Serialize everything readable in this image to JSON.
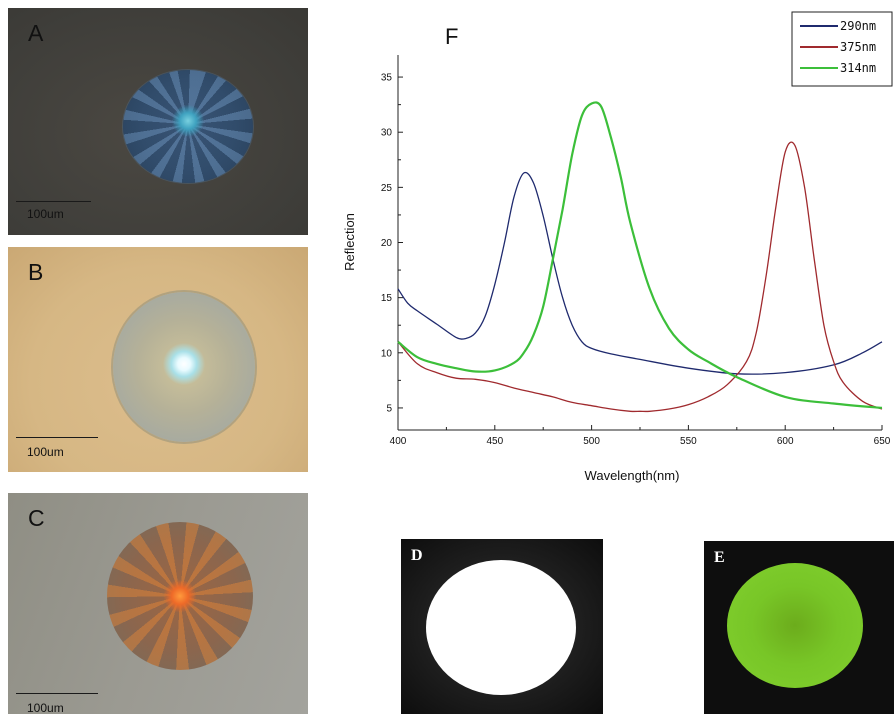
{
  "panels": {
    "a": {
      "letter": "A",
      "scale_label": "100um"
    },
    "b": {
      "letter": "B",
      "scale_label": "100um"
    },
    "c": {
      "letter": "C",
      "scale_label": "100um"
    },
    "d": {
      "letter": "D"
    },
    "e": {
      "letter": "E"
    }
  },
  "chart_data": {
    "type": "line",
    "panel_letter": "F",
    "xlabel": "Wavelength(nm)",
    "ylabel": "Reflection",
    "xlim": [
      400,
      650
    ],
    "ylim": [
      3,
      37
    ],
    "xticks": [
      400,
      450,
      500,
      550,
      600,
      650
    ],
    "yticks": [
      5,
      10,
      15,
      20,
      25,
      30,
      35
    ],
    "legend_position": "top-right",
    "series": [
      {
        "name": "290nm",
        "color": "#1f2a6e",
        "x": [
          400,
          405,
          410,
          420,
          430,
          435,
          440,
          445,
          450,
          455,
          460,
          465,
          470,
          475,
          480,
          485,
          490,
          495,
          500,
          510,
          525,
          550,
          575,
          600,
          625,
          640,
          650
        ],
        "y": [
          15.8,
          14.5,
          13.8,
          12.6,
          11.4,
          11.3,
          11.8,
          13.3,
          16.2,
          20.0,
          24.2,
          26.3,
          25.4,
          22.4,
          18.5,
          15.0,
          12.5,
          11.0,
          10.4,
          9.9,
          9.4,
          8.6,
          8.1,
          8.2,
          8.9,
          10.0,
          11.0
        ]
      },
      {
        "name": "375nm",
        "color": "#a02a2e",
        "x": [
          400,
          410,
          420,
          430,
          440,
          450,
          460,
          470,
          480,
          490,
          500,
          510,
          520,
          525,
          530,
          540,
          550,
          560,
          570,
          580,
          585,
          590,
          595,
          600,
          605,
          610,
          615,
          620,
          625,
          630,
          640,
          650
        ],
        "y": [
          11.0,
          9.0,
          8.2,
          7.7,
          7.6,
          7.3,
          6.8,
          6.4,
          6.0,
          5.5,
          5.2,
          4.9,
          4.7,
          4.7,
          4.7,
          4.9,
          5.3,
          6.0,
          7.1,
          9.2,
          11.8,
          16.8,
          23.0,
          28.2,
          28.8,
          25.0,
          18.5,
          12.5,
          9.2,
          7.3,
          5.6,
          4.9
        ]
      },
      {
        "name": "314nm",
        "color": "#3cbf3a",
        "x": [
          400,
          410,
          420,
          430,
          440,
          450,
          460,
          465,
          470,
          475,
          480,
          485,
          490,
          495,
          500,
          505,
          510,
          515,
          520,
          530,
          540,
          550,
          560,
          575,
          600,
          625,
          650
        ],
        "y": [
          11.0,
          9.6,
          9.0,
          8.6,
          8.3,
          8.4,
          9.1,
          10.0,
          11.6,
          14.2,
          18.5,
          23.0,
          28.0,
          31.5,
          32.6,
          32.3,
          29.5,
          26.0,
          21.8,
          15.8,
          12.2,
          10.3,
          9.2,
          7.8,
          6.0,
          5.4,
          5.0
        ]
      }
    ]
  }
}
